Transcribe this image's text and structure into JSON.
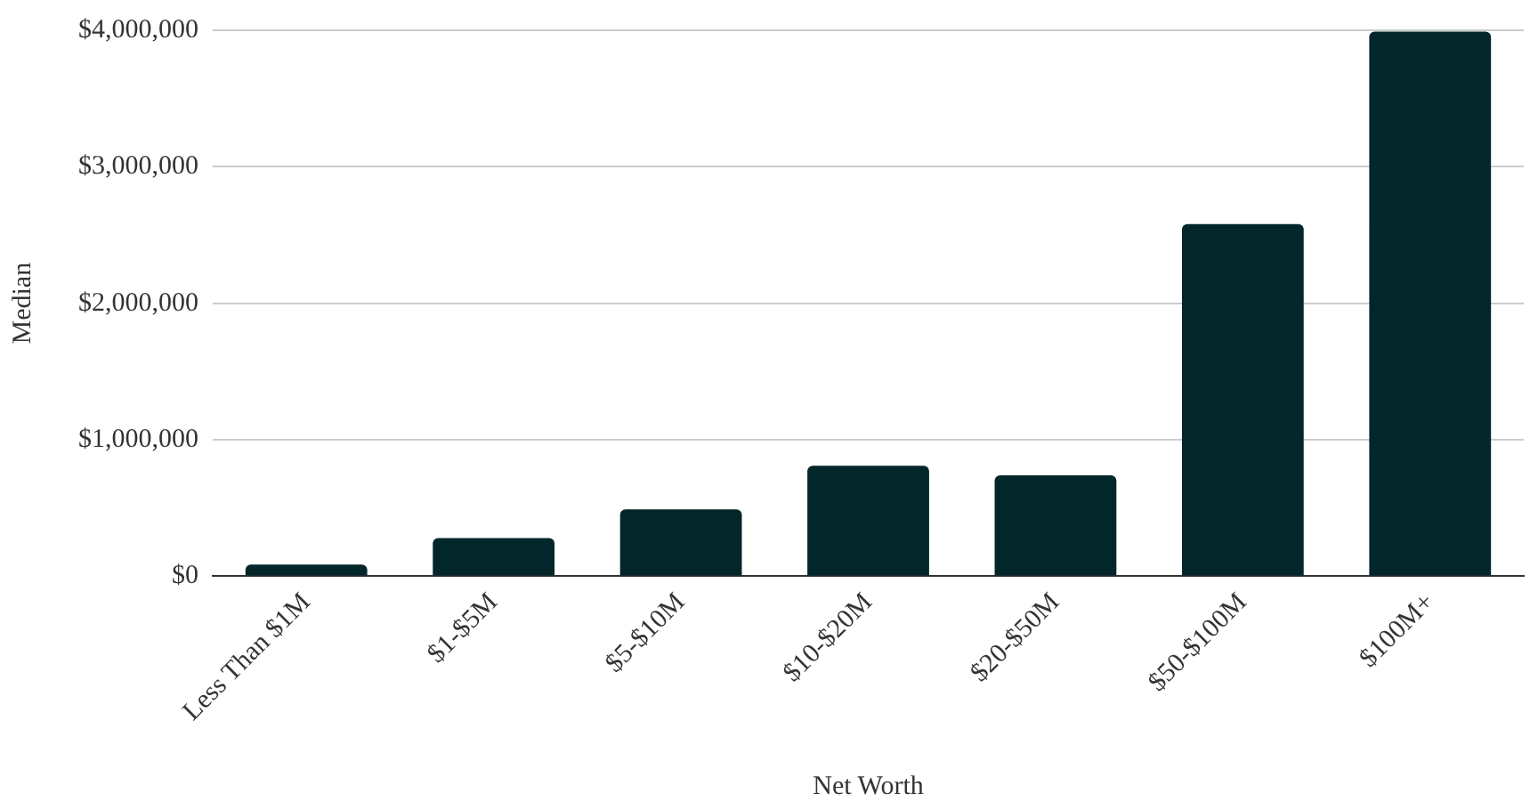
{
  "chart_data": {
    "type": "bar",
    "xlabel": "Net Worth",
    "ylabel": "Median",
    "categories": [
      "Less Than $1M",
      "$1-$5M",
      "$5-$10M",
      "$10-$20M",
      "$20-$50M",
      "$50-$100M",
      "$100M+"
    ],
    "values": [
      85000,
      280000,
      490000,
      810000,
      740000,
      2580000,
      3990000
    ],
    "color": "#03262a",
    "ylim": [
      0,
      4000000
    ],
    "yticks": [
      {
        "value": 0,
        "label": "$0"
      },
      {
        "value": 1000000,
        "label": "$1,000,000"
      },
      {
        "value": 2000000,
        "label": "$2,000,000"
      },
      {
        "value": 3000000,
        "label": "$3,000,000"
      },
      {
        "value": 4000000,
        "label": "$4,000,000"
      }
    ],
    "grid": "y"
  }
}
